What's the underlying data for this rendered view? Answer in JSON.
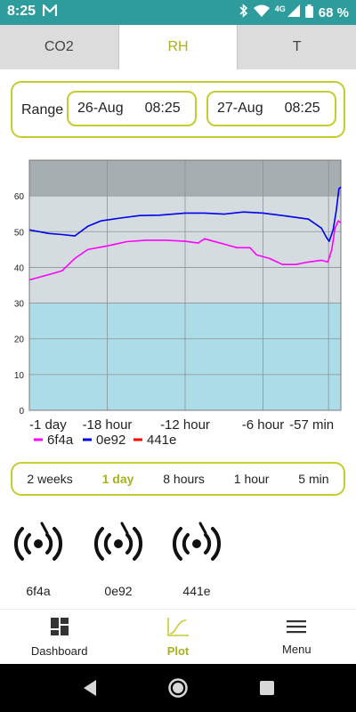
{
  "status_bar": {
    "time": "8:25",
    "battery": "68 %",
    "network": "4G"
  },
  "tabs": [
    {
      "label": "CO2",
      "active": false
    },
    {
      "label": "RH",
      "active": true
    },
    {
      "label": "T",
      "active": false
    }
  ],
  "range": {
    "label": "Range",
    "start_date": "26-Aug",
    "start_time": "08:25",
    "end_date": "27-Aug",
    "end_time": "08:25"
  },
  "periods": [
    {
      "label": "2 weeks",
      "active": false
    },
    {
      "label": "1 day",
      "active": true
    },
    {
      "label": "8 hours",
      "active": false
    },
    {
      "label": "1 hour",
      "active": false
    },
    {
      "label": "5 min",
      "active": false
    }
  ],
  "sensors": [
    {
      "label": "6f4a"
    },
    {
      "label": "0e92"
    },
    {
      "label": "441e"
    }
  ],
  "bottom_nav": [
    {
      "label": "Dashboard",
      "icon": "dashboard-icon",
      "active": false
    },
    {
      "label": "Plot",
      "icon": "plot-icon",
      "active": true
    },
    {
      "label": "Menu",
      "icon": "menu-icon",
      "active": false
    }
  ],
  "colors": {
    "accent": "#c6cb2f",
    "accent_text": "#a8b21a",
    "status_bar": "#2e9c9c",
    "band_high": "#a7aeb2",
    "band_mid": "#d5dcdf",
    "band_low": "#acdce8"
  },
  "chart_data": {
    "type": "line",
    "x_unit": "hours relative to now",
    "xlim": [
      -24,
      0
    ],
    "x_ticks": [
      -24,
      -18,
      -12,
      -6,
      -0.95
    ],
    "x_tick_labels": [
      "-1 day",
      "-18 hour",
      "-12 hour",
      "-6 hour",
      "-57 min"
    ],
    "ylim": [
      0,
      70
    ],
    "y_ticks": [
      0,
      10,
      20,
      30,
      40,
      50,
      60
    ],
    "grid": true,
    "legend_position": "bottom-left",
    "bands": [
      {
        "from": 0,
        "to": 30,
        "color": "#acdce8"
      },
      {
        "from": 30,
        "to": 60,
        "color": "#d5dcdf"
      },
      {
        "from": 60,
        "to": 70,
        "color": "#a7aeb2"
      }
    ],
    "series": [
      {
        "name": "6f4a",
        "color": "#ff00ff",
        "x": [
          -24,
          -22.5,
          -21.5,
          -20.5,
          -19.5,
          -18,
          -16.5,
          -15,
          -13.5,
          -12,
          -11,
          -10.5,
          -9.5,
          -8,
          -7,
          -6.5,
          -5.5,
          -4.5,
          -3.5,
          -2.5,
          -1.5,
          -1,
          -0.7,
          -0.45,
          -0.2,
          0
        ],
        "y": [
          36.5,
          38,
          39,
          42.5,
          45,
          46,
          47.2,
          47.6,
          47.6,
          47.3,
          46.8,
          48,
          47,
          45.5,
          45.5,
          43.5,
          42.5,
          40.8,
          40.8,
          41.5,
          42,
          41.5,
          45,
          51,
          53,
          52.5
        ]
      },
      {
        "name": "0e92",
        "color": "#0000ee",
        "x": [
          -24,
          -22.5,
          -21.5,
          -20.5,
          -19.5,
          -18.5,
          -17,
          -15.5,
          -14,
          -12,
          -10.5,
          -9,
          -7.5,
          -6,
          -4.5,
          -3.5,
          -2.5,
          -1.5,
          -1.1,
          -0.9,
          -0.6,
          -0.35,
          -0.15,
          0
        ],
        "y": [
          50.5,
          49.5,
          49.2,
          48.8,
          51.5,
          53,
          53.8,
          54.5,
          54.6,
          55.2,
          55.2,
          54.9,
          55.5,
          55.2,
          54.5,
          54,
          53.5,
          51,
          48.3,
          47.3,
          50.5,
          56,
          62,
          62.5
        ]
      },
      {
        "name": "441e",
        "color": "#ff0000",
        "x": [],
        "y": []
      }
    ]
  }
}
